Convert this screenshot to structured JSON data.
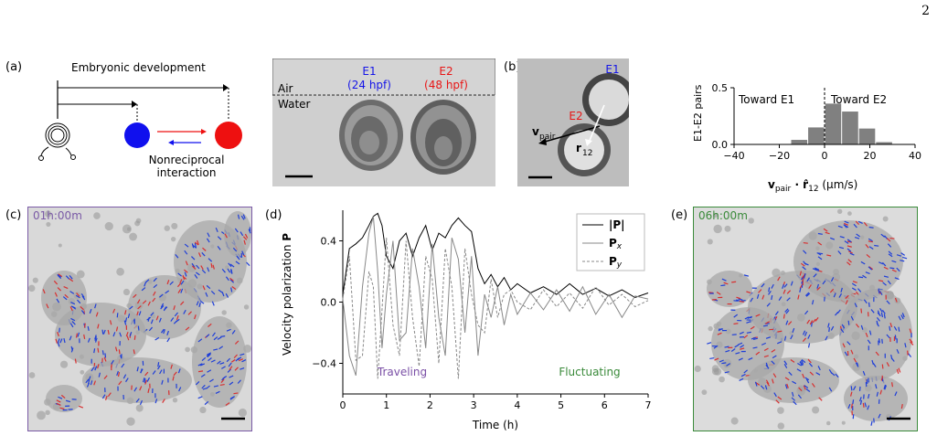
{
  "page_number": "2",
  "panels": {
    "a": {
      "label": "(a)",
      "development_label": "Embryonic development",
      "interaction_label_1": "Nonreciprocal",
      "interaction_label_2": "interaction",
      "colors": {
        "blue": "#1010ee",
        "red": "#ee1010"
      },
      "photo": {
        "air": "Air",
        "water": "Water",
        "e1": "E1",
        "e1_age": "(24 hpf)",
        "e2": "E2",
        "e2_age": "(48 hpf)"
      }
    },
    "b": {
      "label": "(b)",
      "e1": "E1",
      "e2": "E2",
      "v_pair": "v",
      "v_pair_sub": "pair",
      "r12": "r",
      "r12_sub": "12",
      "histogram": {
        "ylabel": "E1-E2 pairs",
        "xlabel": "v",
        "xlabel_sub1": "pair",
        "xlabel_mid": " · r̂",
        "xlabel_sub2": "12",
        "xlabel_unit": " (µm/s)",
        "annot_left": "Toward E1",
        "annot_right": "Toward E2",
        "xticks": [
          "−40",
          "−20",
          "0",
          "20",
          "40"
        ],
        "yticks": [
          "0.0",
          "0.5"
        ]
      }
    },
    "c": {
      "label": "(c)",
      "timestamp": "01h:00m"
    },
    "d": {
      "label": "(d)",
      "ylabel": "Velocity polarization ",
      "ylabel_bold": "P",
      "xlabel": "Time (h)",
      "regime_left": "Traveling",
      "regime_right": "Fluctuating",
      "legend": [
        "|P|",
        "P",
        "P"
      ],
      "legend_subs": [
        "",
        "x",
        "y"
      ]
    },
    "e": {
      "label": "(e)",
      "timestamp": "06h:00m"
    }
  },
  "chart_data": [
    {
      "type": "bar",
      "ylabel": "E1-E2 pairs",
      "xlabel": "v_pair · r̂12 (µm/s)",
      "xlim": [
        -40,
        40
      ],
      "ylim": [
        0,
        0.5
      ],
      "bin_width": 7.5,
      "bin_centers": [
        -11,
        -3.5,
        4,
        11.5,
        19,
        26.5
      ],
      "values": [
        0.04,
        0.15,
        0.36,
        0.29,
        0.14,
        0.02
      ],
      "color": "#808080",
      "vline_at": 0,
      "annotations": [
        "Toward E1",
        "Toward E2"
      ]
    },
    {
      "type": "line",
      "xlabel": "Time (h)",
      "ylabel": "Velocity polarization P",
      "xlim": [
        0,
        7
      ],
      "ylim": [
        -0.6,
        0.6
      ],
      "xticks": [
        0,
        1,
        2,
        3,
        4,
        5,
        6,
        7
      ],
      "yticks": [
        -0.4,
        0.0,
        0.4
      ],
      "series": [
        {
          "name": "|P|",
          "color": "#000000",
          "style": "solid",
          "x": [
            0,
            0.15,
            0.3,
            0.45,
            0.6,
            0.7,
            0.8,
            0.9,
            1.0,
            1.15,
            1.3,
            1.45,
            1.6,
            1.75,
            1.9,
            2.05,
            2.2,
            2.35,
            2.5,
            2.65,
            2.8,
            2.95,
            3.1,
            3.25,
            3.4,
            3.55,
            3.7,
            3.85,
            4.0,
            4.3,
            4.6,
            4.9,
            5.2,
            5.5,
            5.8,
            6.1,
            6.4,
            6.7,
            7.0
          ],
          "y": [
            0.05,
            0.35,
            0.38,
            0.42,
            0.5,
            0.56,
            0.58,
            0.5,
            0.3,
            0.22,
            0.4,
            0.45,
            0.3,
            0.42,
            0.5,
            0.34,
            0.45,
            0.42,
            0.5,
            0.55,
            0.5,
            0.46,
            0.22,
            0.12,
            0.18,
            0.1,
            0.16,
            0.08,
            0.12,
            0.06,
            0.1,
            0.05,
            0.12,
            0.05,
            0.09,
            0.04,
            0.08,
            0.03,
            0.06
          ]
        },
        {
          "name": "Px",
          "color": "#888888",
          "style": "solid",
          "x": [
            0,
            0.15,
            0.3,
            0.45,
            0.6,
            0.7,
            0.8,
            0.9,
            1.0,
            1.15,
            1.3,
            1.45,
            1.6,
            1.75,
            1.9,
            2.05,
            2.2,
            2.35,
            2.5,
            2.65,
            2.8,
            2.95,
            3.1,
            3.25,
            3.4,
            3.55,
            3.7,
            3.85,
            4.0,
            4.3,
            4.6,
            4.9,
            5.2,
            5.5,
            5.8,
            6.1,
            6.4,
            6.7,
            7.0
          ],
          "y": [
            0.02,
            -0.35,
            -0.48,
            0.1,
            0.45,
            0.56,
            0.2,
            -0.3,
            0.05,
            0.4,
            -0.25,
            -0.2,
            0.35,
            0.1,
            -0.3,
            0.38,
            -0.1,
            -0.35,
            0.42,
            0.28,
            -0.2,
            0.3,
            -0.35,
            0.05,
            -0.1,
            0.1,
            -0.15,
            0.05,
            -0.08,
            0.06,
            -0.05,
            0.08,
            -0.06,
            0.1,
            -0.08,
            0.05,
            -0.1,
            0.04,
            0.02
          ]
        },
        {
          "name": "Py",
          "color": "#888888",
          "style": "dashed",
          "x": [
            0,
            0.15,
            0.3,
            0.45,
            0.6,
            0.7,
            0.8,
            0.9,
            1.0,
            1.15,
            1.3,
            1.45,
            1.6,
            1.75,
            1.9,
            2.05,
            2.2,
            2.35,
            2.5,
            2.65,
            2.8,
            2.95,
            3.1,
            3.25,
            3.4,
            3.55,
            3.7,
            3.85,
            4.0,
            4.3,
            4.6,
            4.9,
            5.2,
            5.5,
            5.8,
            6.1,
            6.4,
            6.7,
            7.0
          ],
          "y": [
            0.02,
            0.3,
            -0.38,
            -0.35,
            0.2,
            0.1,
            -0.5,
            -0.05,
            0.42,
            -0.15,
            -0.35,
            0.4,
            -0.1,
            -0.42,
            0.3,
            0.15,
            -0.4,
            0.35,
            0.1,
            -0.5,
            0.35,
            0.05,
            -0.15,
            -0.2,
            0.15,
            -0.1,
            0.05,
            0.08,
            0.0,
            -0.05,
            0.08,
            -0.03,
            0.06,
            -0.04,
            0.1,
            -0.02,
            0.05,
            -0.03,
            0.01
          ]
        }
      ],
      "annotations": [
        {
          "text": "Traveling",
          "color": "#7a4fa6"
        },
        {
          "text": "Fluctuating",
          "color": "#3a8a3a"
        }
      ]
    }
  ]
}
